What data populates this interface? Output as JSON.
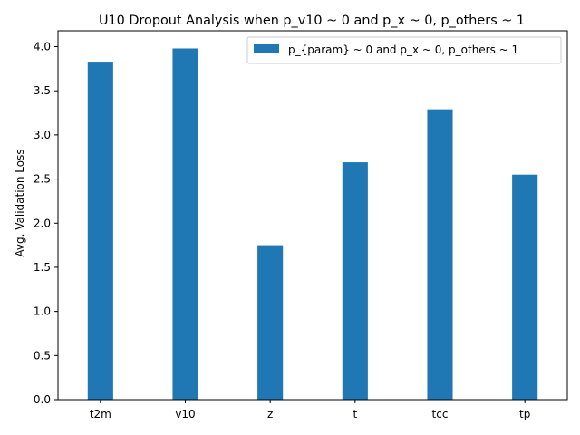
{
  "chart_data": {
    "type": "bar",
    "title": "U10 Dropout Analysis when p_v10 ~ 0 and p_x ~ 0, p_others ~ 1",
    "xlabel": "",
    "ylabel": "Avg. Validation Loss",
    "categories": [
      "t2m",
      "v10",
      "z",
      "t",
      "tcc",
      "tp"
    ],
    "series": [
      {
        "name": "p_{param} ~ 0 and p_x ~ 0, p_others ~ 1",
        "values": [
          3.83,
          3.98,
          1.75,
          2.69,
          3.29,
          2.55
        ],
        "color": "#1f77b4"
      }
    ],
    "ylim": [
      0,
      4.18
    ],
    "yticks": [
      "0.0",
      "0.5",
      "1.0",
      "1.5",
      "2.0",
      "2.5",
      "3.0",
      "3.5",
      "4.0"
    ],
    "grid": false,
    "legend_position": "upper right"
  }
}
